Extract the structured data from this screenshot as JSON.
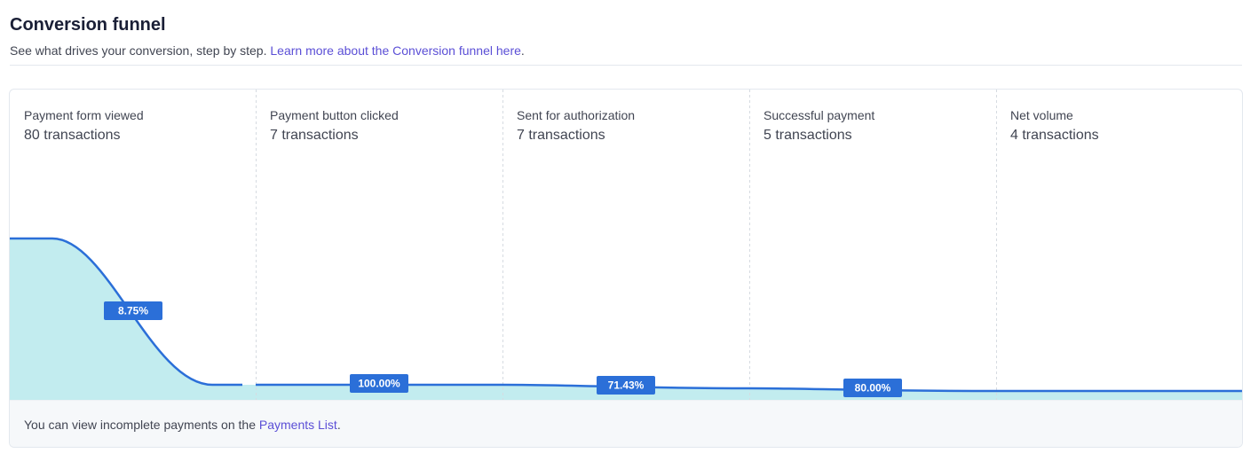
{
  "header": {
    "title": "Conversion funnel",
    "subtitle_text": "See what drives your conversion, step by step. ",
    "subtitle_link": "Learn more about the Conversion funnel here",
    "subtitle_end": "."
  },
  "steps": [
    {
      "label": "Payment form viewed",
      "count": "80 transactions"
    },
    {
      "label": "Payment button clicked",
      "count": "7 transactions"
    },
    {
      "label": "Sent for authorization",
      "count": "7 transactions"
    },
    {
      "label": "Successful payment",
      "count": "5 transactions"
    },
    {
      "label": "Net volume",
      "count": "4 transactions"
    }
  ],
  "rates": [
    "8.75%",
    "100.00%",
    "71.43%",
    "80.00%"
  ],
  "colors": {
    "line": "#2b6fd8",
    "fill": "#c2ecef",
    "badge": "#2b6fd8",
    "link": "#5b4fd6"
  },
  "footer": {
    "text": "You can view incomplete payments on the ",
    "link": "Payments List",
    "end": "."
  }
}
